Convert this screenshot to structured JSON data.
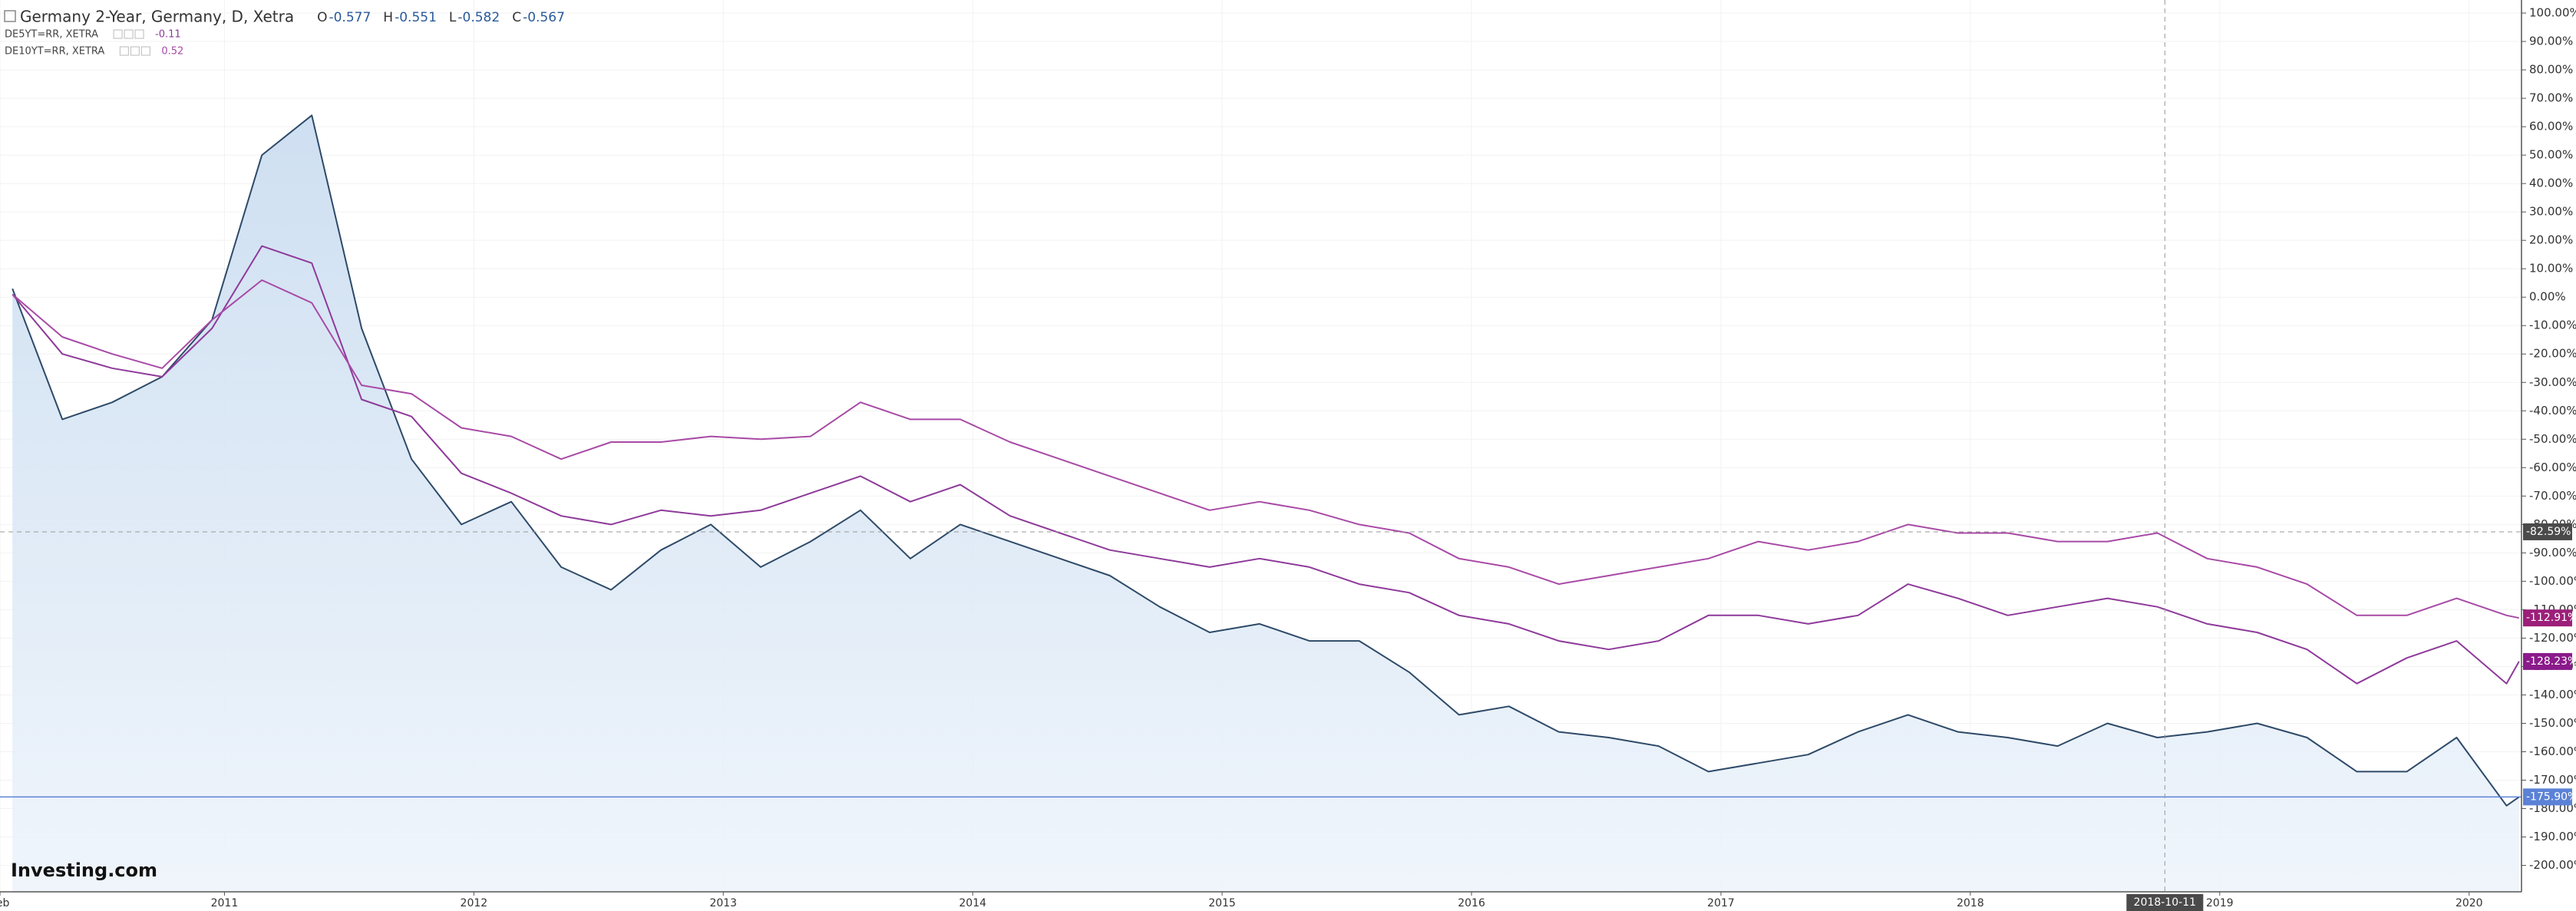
{
  "chart_data": {
    "type": "line",
    "title": "Germany 2-Year, Germany, D, Xetra",
    "ohlc": [
      {
        "key": "O",
        "value": -0.577
      },
      {
        "key": "H",
        "value": -0.551
      },
      {
        "key": "L",
        "value": -0.582
      },
      {
        "key": "C",
        "value": -0.567
      }
    ],
    "logo": "Investing.com",
    "x": [
      2010.15,
      2010.35,
      2010.55,
      2010.75,
      2010.95,
      2011.15,
      2011.35,
      2011.55,
      2011.75,
      2011.95,
      2012.15,
      2012.35,
      2012.55,
      2012.75,
      2012.95,
      2013.15,
      2013.35,
      2013.55,
      2013.75,
      2013.95,
      2014.15,
      2014.35,
      2014.55,
      2014.75,
      2014.95,
      2015.15,
      2015.35,
      2015.55,
      2015.75,
      2015.95,
      2016.15,
      2016.35,
      2016.55,
      2016.75,
      2016.95,
      2017.15,
      2017.35,
      2017.55,
      2017.75,
      2017.95,
      2018.15,
      2018.35,
      2018.55,
      2018.75,
      2018.95,
      2019.15,
      2019.35,
      2019.55,
      2019.75,
      2019.95,
      2020.15,
      2020.2
    ],
    "series": [
      {
        "name": "Germany 2-Year, Germany, D, Xetra",
        "color": "#2e4a68",
        "area": "#dce9f6",
        "last_label": "-175.90%",
        "label_color": "#5b82d6",
        "values": [
          3,
          -43,
          -37,
          -28,
          -8,
          50,
          64,
          -11,
          -57,
          -80,
          -72,
          -95,
          -103,
          -89,
          -80,
          -95,
          -86,
          -75,
          -92,
          -80,
          -86,
          -92,
          -98,
          -109,
          -118,
          -115,
          -121,
          -121,
          -132,
          -147,
          -144,
          -153,
          -155,
          -158,
          -167,
          -164,
          -161,
          -153,
          -147,
          -153,
          -155,
          -158,
          -150,
          -155,
          -153,
          -150,
          -155,
          -167,
          -167,
          -155,
          -179,
          -175.9
        ]
      },
      {
        "name": "DE5YT=RR, XETRA",
        "legend_value": -0.11,
        "color": "#8e3a9a",
        "last_label": "-128.23%",
        "label_color": "#8b1a8b",
        "values": [
          1,
          -20,
          -25,
          -28,
          -11,
          18,
          12,
          -36,
          -42,
          -62,
          -69,
          -77,
          -80,
          -75,
          -77,
          -75,
          -69,
          -63,
          -72,
          -66,
          -77,
          -83,
          -89,
          -92,
          -95,
          -92,
          -95,
          -101,
          -104,
          -112,
          -115,
          -121,
          -124,
          -121,
          -112,
          -112,
          -115,
          -112,
          -101,
          -106,
          -112,
          -109,
          -106,
          -109,
          -115,
          -118,
          -124,
          -136,
          -127,
          -121,
          -136,
          -128.23
        ]
      },
      {
        "name": "DE10YT=RR, XETRA",
        "legend_value": 0.52,
        "color": "#a84aa6",
        "last_label": "-112.91%",
        "label_color": "#9c1f7a",
        "values": [
          1,
          -14,
          -20,
          -25,
          -8,
          6,
          -2,
          -31,
          -34,
          -46,
          -49,
          -57,
          -51,
          -51,
          -49,
          -50,
          -49,
          -37,
          -43,
          -43,
          -51,
          -57,
          -63,
          -69,
          -75,
          -72,
          -75,
          -80,
          -83,
          -92,
          -95,
          -101,
          -98,
          -95,
          -92,
          -86,
          -89,
          -86,
          -80,
          -83,
          -83,
          -86,
          -86,
          -83,
          -92,
          -95,
          -101,
          -112,
          -112,
          -106,
          -112,
          -112.91
        ]
      }
    ],
    "xlim": [
      2010.1,
      2020.21
    ],
    "xticks": [
      {
        "value": 2010.1,
        "label": "Feb"
      },
      2011,
      2012,
      2013,
      2014,
      2015,
      2016,
      2017,
      2018,
      2019,
      2020
    ],
    "ylim": [
      -209.3,
      104.6
    ],
    "yticks": [
      {
        "value": 100,
        "label": "100.00%"
      },
      {
        "value": 90,
        "label": "90.00%"
      },
      {
        "value": 80,
        "label": "80.00%"
      },
      {
        "value": 70,
        "label": "70.00%"
      },
      {
        "value": 60,
        "label": "60.00%"
      },
      {
        "value": 50,
        "label": "50.00%"
      },
      {
        "value": 40,
        "label": "40.00%"
      },
      {
        "value": 30,
        "label": "30.00%"
      },
      {
        "value": 20,
        "label": "20.00%"
      },
      {
        "value": 10,
        "label": "10.00%"
      },
      {
        "value": 0,
        "label": "0.00%"
      },
      {
        "value": -10,
        "label": "-10.00%"
      },
      {
        "value": -20,
        "label": "-20.00%"
      },
      {
        "value": -30,
        "label": "-30.00%"
      },
      {
        "value": -40,
        "label": "-40.00%"
      },
      {
        "value": -50,
        "label": "-50.00%"
      },
      {
        "value": -60,
        "label": "-60.00%"
      },
      {
        "value": -70,
        "label": "-70.00%"
      },
      {
        "value": -80,
        "label": "-80.00%"
      },
      {
        "value": -90,
        "label": "-90.00%"
      },
      {
        "value": -100,
        "label": "-100.00%"
      },
      {
        "value": -110,
        "label": "-110.00%"
      },
      {
        "value": -120,
        "label": "-120.00%"
      },
      {
        "value": -130,
        "label": "-130.00%"
      },
      {
        "value": -140,
        "label": "-140.00%"
      },
      {
        "value": -150,
        "label": "-150.00%"
      },
      {
        "value": -160,
        "label": "-160.00%"
      },
      {
        "value": -170,
        "label": "-170.00%"
      },
      {
        "value": -180,
        "label": "-180.00%"
      },
      {
        "value": -190,
        "label": "-190.00%"
      },
      {
        "value": -200,
        "label": "-200.00%"
      }
    ],
    "grid": true,
    "crosshair": {
      "x": {
        "value": 2018.78,
        "label": "2018-10-11"
      },
      "y": {
        "value": -82.59,
        "label": "-82.59%"
      }
    }
  }
}
